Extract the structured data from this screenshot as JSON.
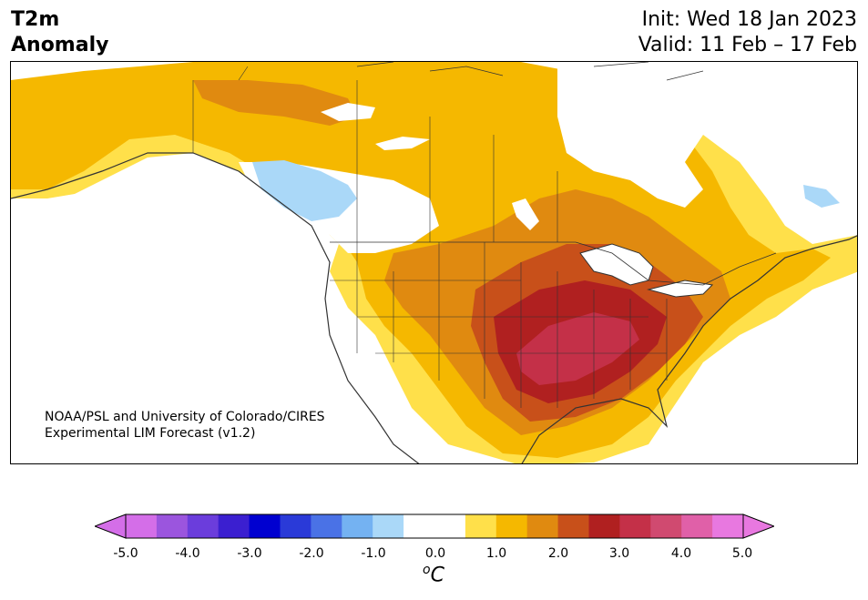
{
  "header": {
    "title_line1": "T2m",
    "title_line2": "Anomaly",
    "init_text": "Init: Wed 18 Jan 2023",
    "valid_text": "Valid: 11 Feb – 17 Feb"
  },
  "map": {
    "credit_line1": "NOAA/PSL and University of Colorado/CIRES",
    "credit_line2": "Experimental LIM Forecast (v1.2)"
  },
  "colorbar": {
    "ticks": [
      "-5.0",
      "-4.0",
      "-3.0",
      "-2.0",
      "-1.0",
      "0.0",
      "1.0",
      "2.0",
      "3.0",
      "4.0",
      "5.0"
    ],
    "unit_base": "C",
    "unit_sup": "o",
    "colors": [
      "#d46ee8",
      "#9b55de",
      "#6b3ddc",
      "#3b1fd0",
      "#0000d0",
      "#2a3ad8",
      "#4a72e6",
      "#74b2f2",
      "#aad8f8",
      "#ffffff",
      "#ffffff",
      "#ffe04a",
      "#f5b800",
      "#e08a10",
      "#c8501a",
      "#b02020",
      "#c43048",
      "#d04a70",
      "#e060a8",
      "#e878e0"
    ],
    "extend_low": "#d46ee8",
    "extend_high": "#e878e0"
  }
}
